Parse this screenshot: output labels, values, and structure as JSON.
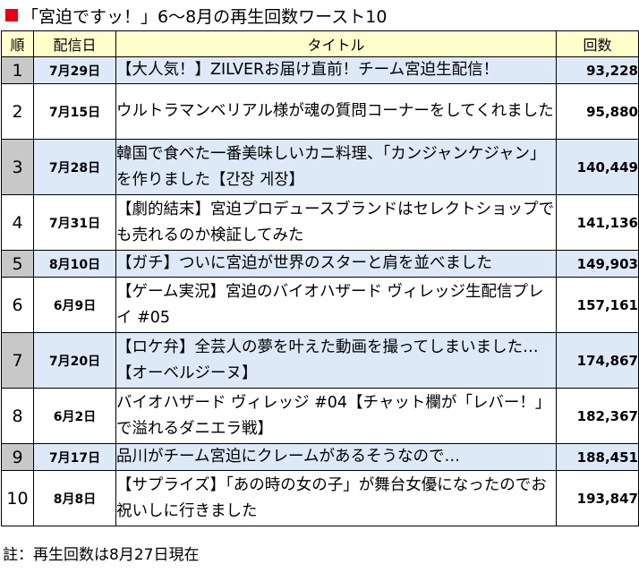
{
  "header": {
    "title": "「宮迫ですッ！」6〜8月の再生回数ワースト10",
    "accent_color": "#e60012"
  },
  "table": {
    "columns": [
      "順",
      "配信日",
      "タイトル",
      "回数"
    ],
    "rows": [
      {
        "rank": "1",
        "date": "7月29日",
        "title": "【大人気！】ZILVERお届け直前！チーム宮迫生配信！",
        "views": "93,228"
      },
      {
        "rank": "2",
        "date": "7月15日",
        "title": "ウルトラマンベリアル様が魂の質問コーナーをしてくれました",
        "views": "95,880"
      },
      {
        "rank": "3",
        "date": "7月28日",
        "title": "韓国で食べた一番美味しいカニ料理、「カンジャンケジャン」を作りました【간장 게장】",
        "views": "140,449"
      },
      {
        "rank": "4",
        "date": "7月31日",
        "title": "【劇的結末】宮迫プロデュースブランドはセレクトショップでも売れるのか検証してみた",
        "views": "141,136"
      },
      {
        "rank": "5",
        "date": "8月10日",
        "title": "【ガチ】ついに宮迫が世界のスターと肩を並べました",
        "views": "149,903"
      },
      {
        "rank": "6",
        "date": "6月9日",
        "title": "【ゲーム実況】宮迫のバイオハザード ヴィレッジ生配信プレイ #05",
        "views": "157,161"
      },
      {
        "rank": "7",
        "date": "7月20日",
        "title": "【ロケ弁】全芸人の夢を叶えた動画を撮ってしまいました…【オーベルジーヌ】",
        "views": "174,867"
      },
      {
        "rank": "8",
        "date": "6月2日",
        "title": "バイオハザード ヴィレッジ #04【チャット欄が「レバー！」で溢れるダニエラ戦】",
        "views": "182,367"
      },
      {
        "rank": "9",
        "date": "7月17日",
        "title": "品川がチーム宮迫にクレームがあるそうなので…",
        "views": "188,451"
      },
      {
        "rank": "10",
        "date": "8月8日",
        "title": "【サプライズ】「あの時の女の子」が舞台女優になったのでお祝いしに行きました",
        "views": "193,847"
      }
    ]
  },
  "footer": {
    "note": "註：再生回数は8月27日現在"
  },
  "colors": {
    "header_bg": "#ffffcc",
    "shaded_row_bg": "#dde9f7",
    "shaded_rank_bg": "#c8c8c8"
  }
}
